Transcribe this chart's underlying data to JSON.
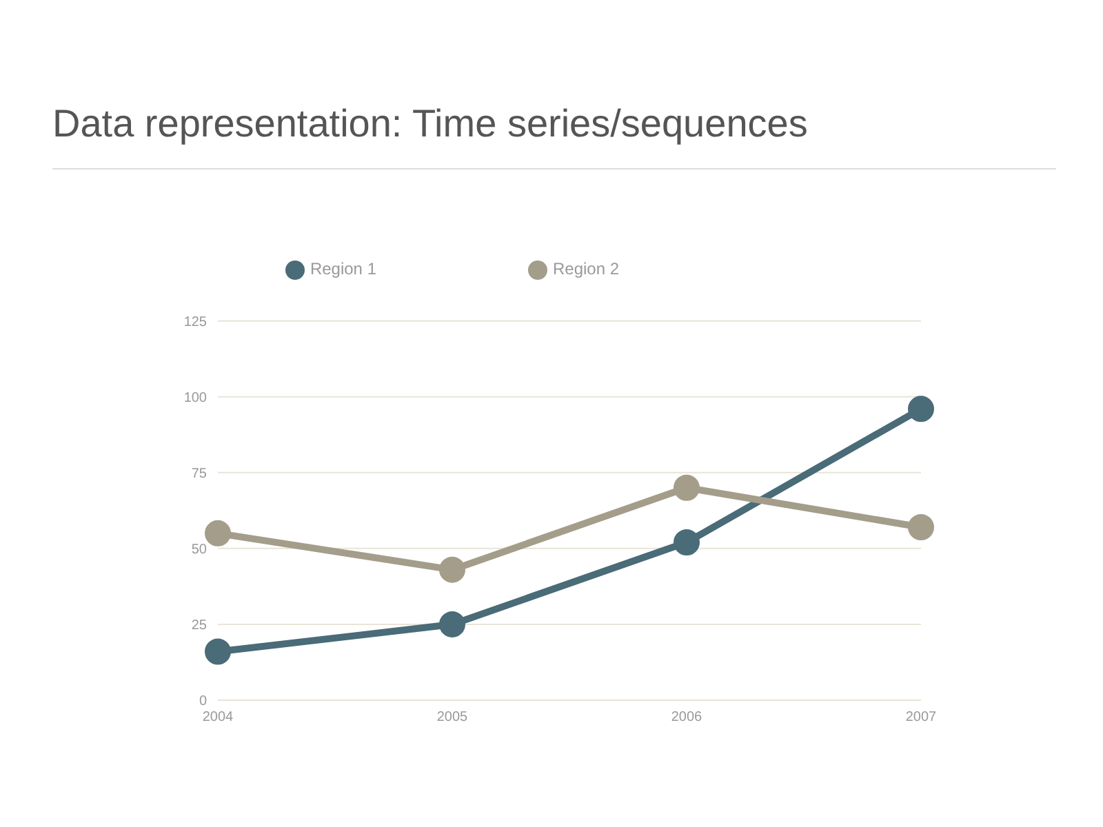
{
  "chart_data": {
    "type": "line",
    "title": "Data representation: Time series/sequences",
    "categories": [
      "2004",
      "2005",
      "2006",
      "2007"
    ],
    "series": [
      {
        "name": "Region 1",
        "color": "#4a6b78",
        "values": [
          16,
          25,
          52,
          96
        ]
      },
      {
        "name": "Region 2",
        "color": "#a39d8a",
        "values": [
          55,
          43,
          70,
          57
        ]
      }
    ],
    "ylim": [
      0,
      125
    ],
    "yticks": [
      0,
      25,
      50,
      75,
      100,
      125
    ],
    "grid": "y",
    "legend": "top",
    "marker": "circle",
    "line_style": "solid"
  }
}
